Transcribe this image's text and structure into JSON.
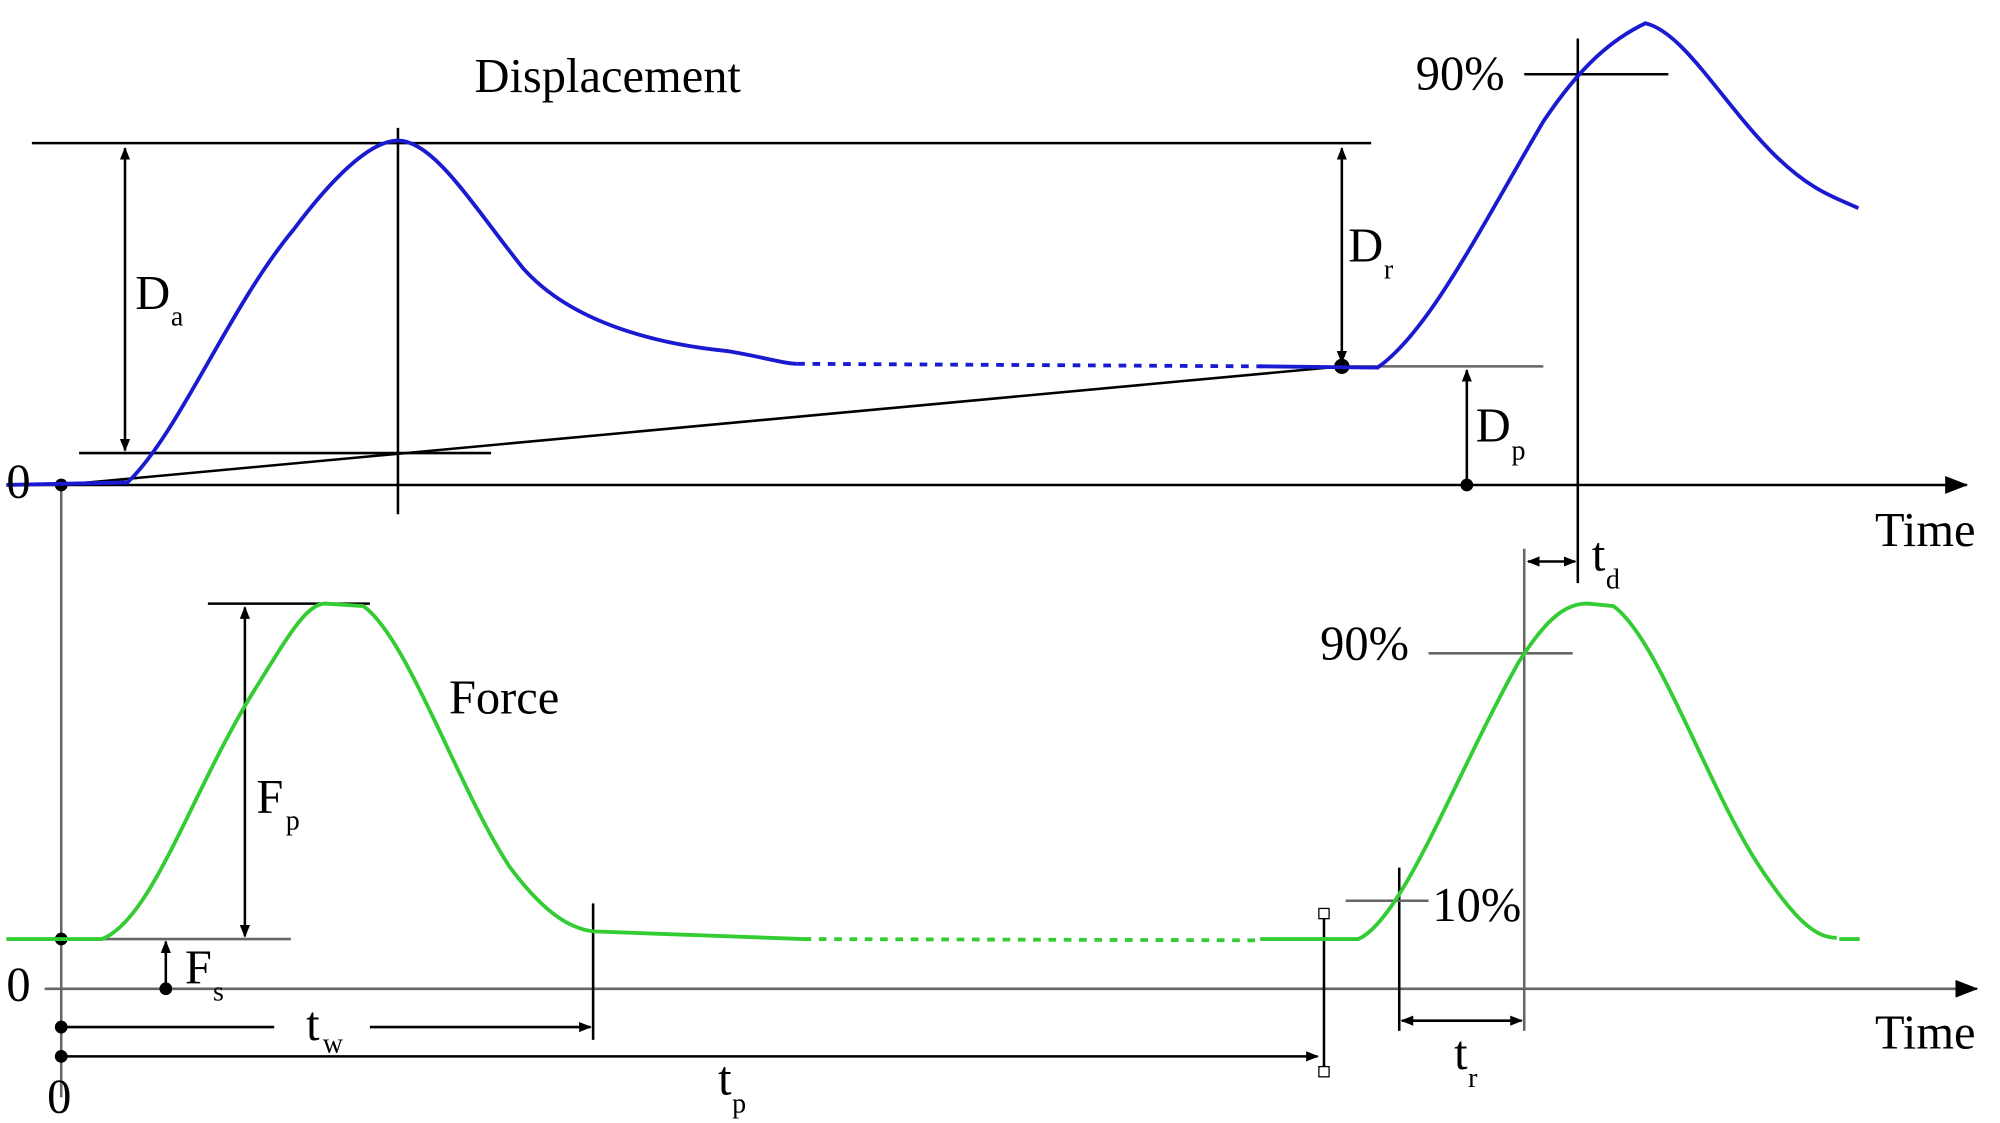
{
  "titles": {
    "displacement": "Displacement",
    "force": "Force"
  },
  "axes": {
    "time_top": "Time",
    "time_bottom": "Time",
    "zero_top": "0",
    "zero_bottom": "0",
    "zero_origin": "0"
  },
  "percents": {
    "top_90": "90%",
    "bottom_90": "90%",
    "bottom_10": "10%"
  },
  "symbols": {
    "da": {
      "main": "D",
      "sub": "a"
    },
    "dr": {
      "main": "D",
      "sub": "r"
    },
    "dp": {
      "main": "D",
      "sub": "p"
    },
    "fp": {
      "main": "F",
      "sub": "p"
    },
    "fs": {
      "main": "F",
      "sub": "s"
    },
    "tw": {
      "main": "t",
      "sub": "w"
    },
    "tp": {
      "main": "t",
      "sub": "p"
    },
    "tr": {
      "main": "t",
      "sub": "r"
    },
    "td": {
      "main": "t",
      "sub": "d"
    }
  }
}
